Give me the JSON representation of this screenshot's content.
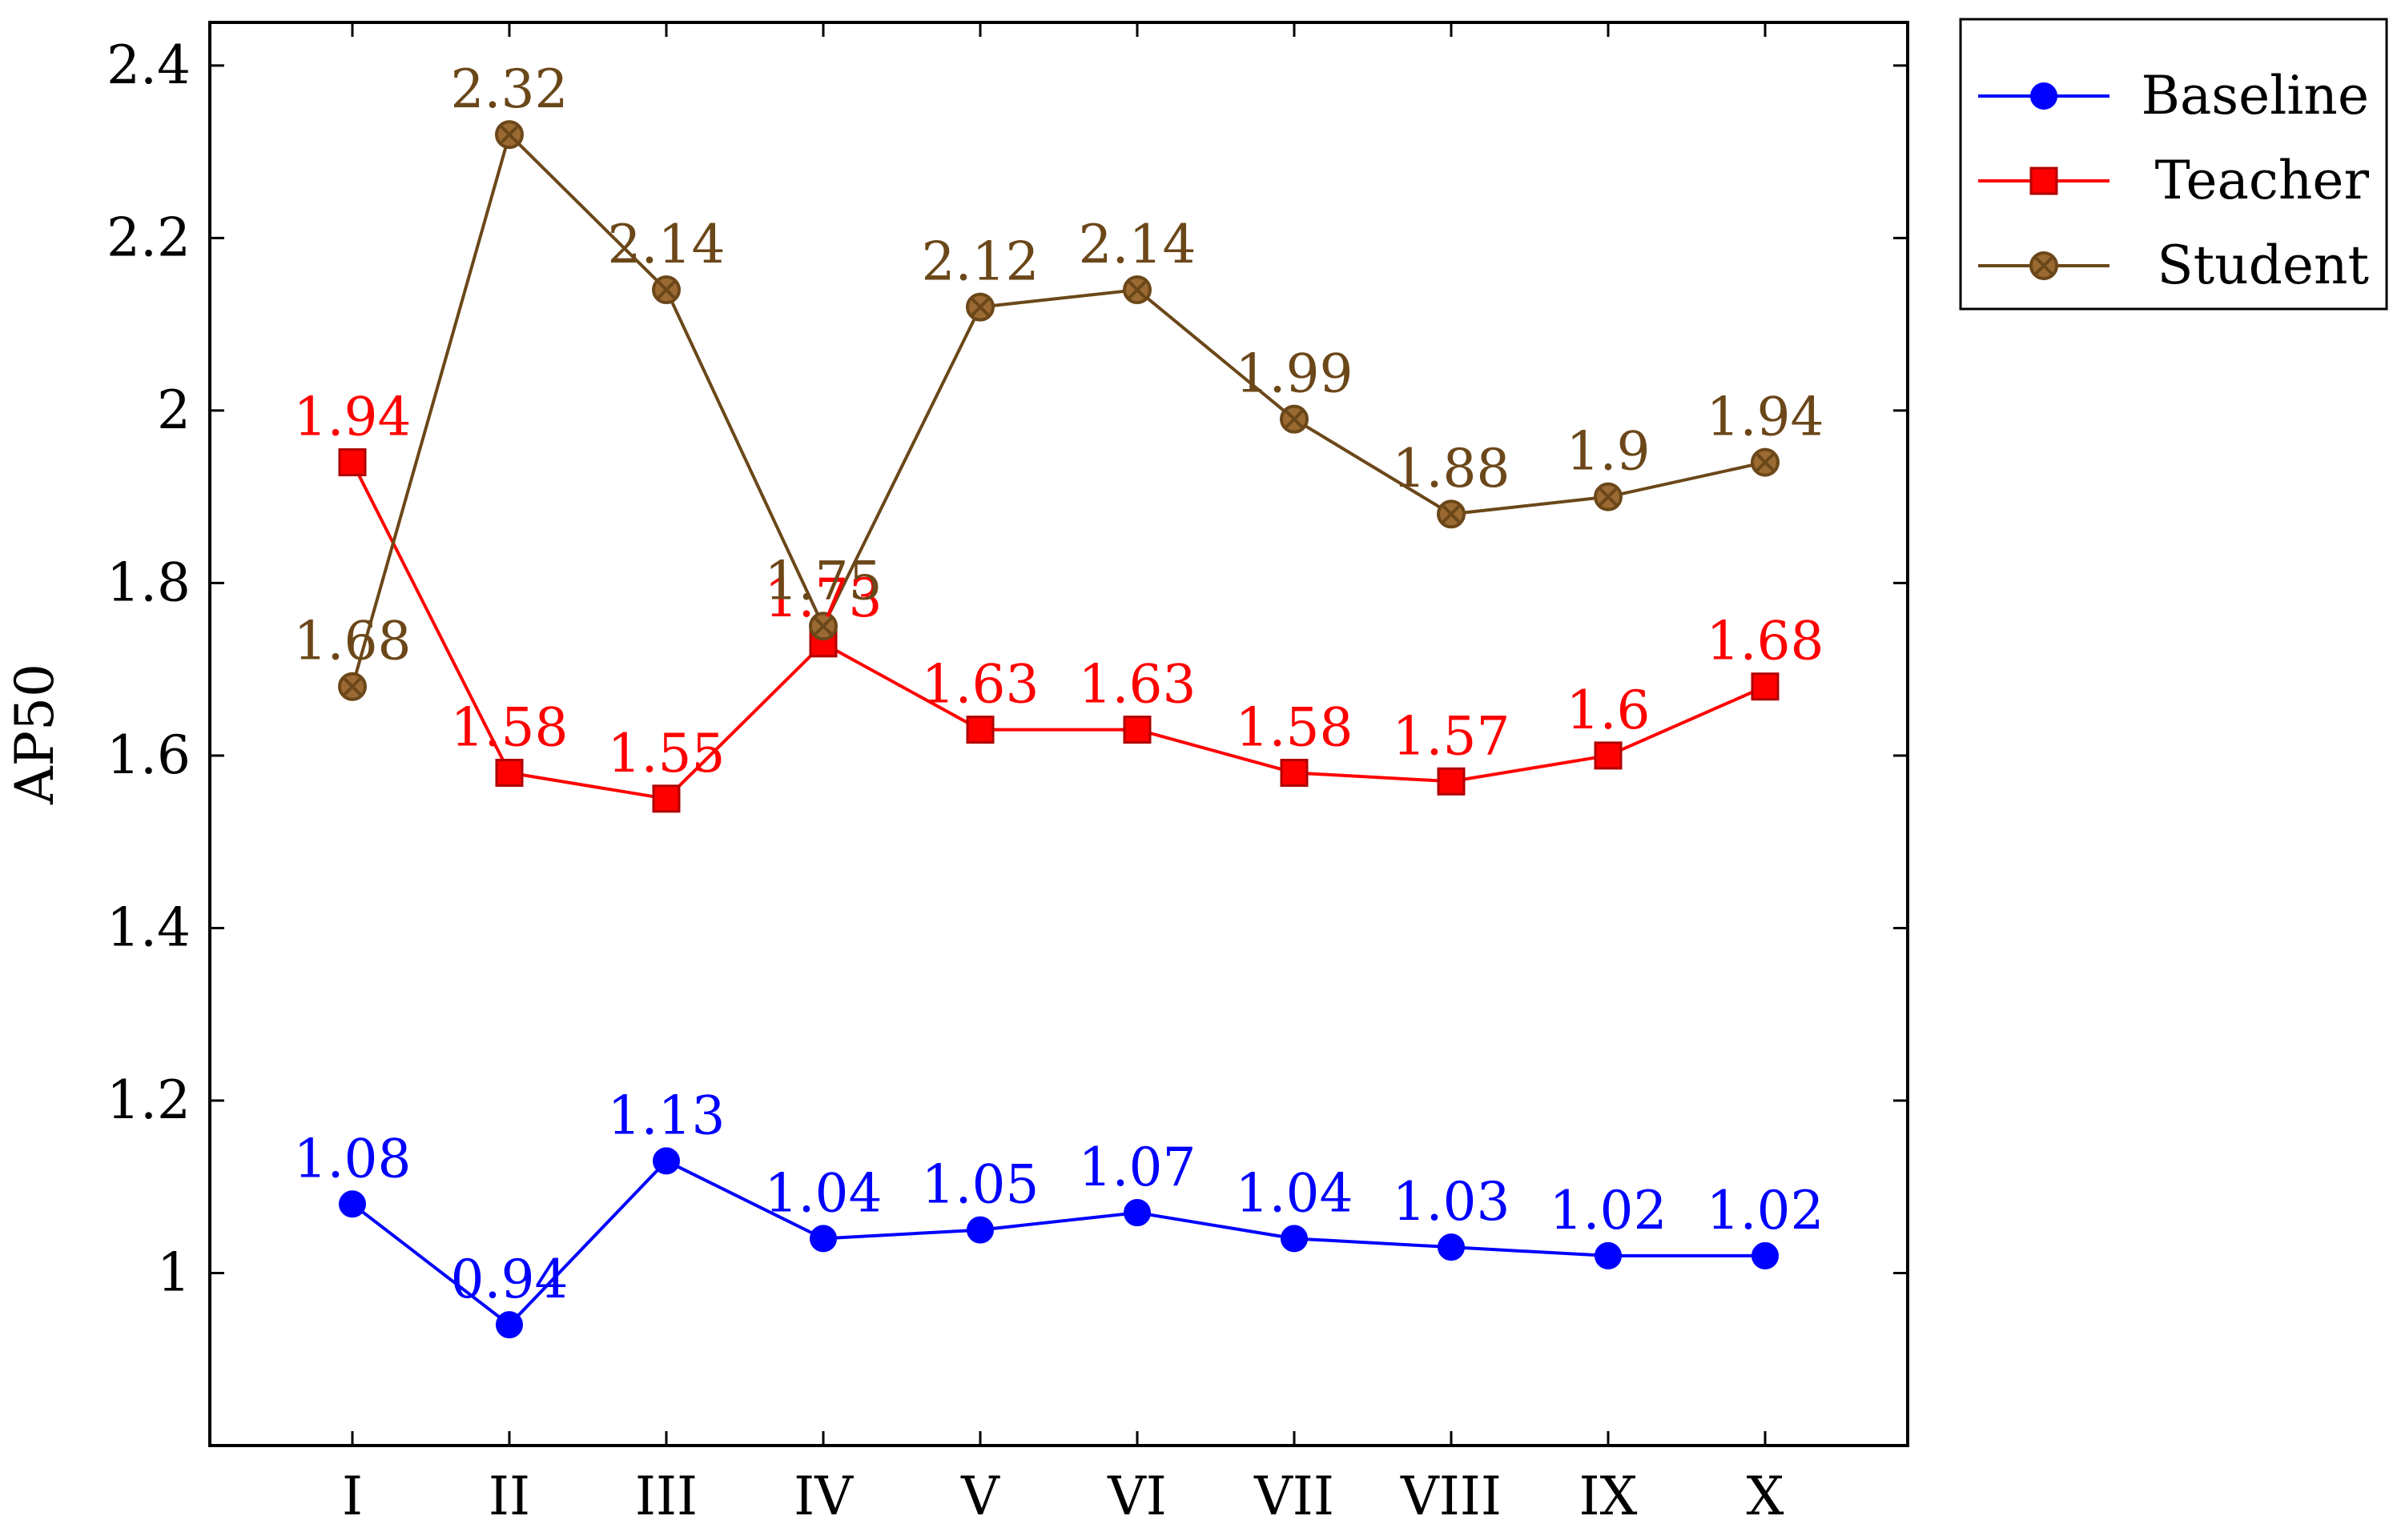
{
  "chart_data": {
    "type": "line",
    "title": "",
    "xlabel": "",
    "ylabel": "AP50",
    "categories": [
      "I",
      "II",
      "III",
      "IV",
      "V",
      "VI",
      "VII",
      "VIII",
      "IX",
      "X"
    ],
    "ylim": [
      0.8,
      2.45
    ],
    "yticks": [
      1,
      1.2,
      1.4,
      1.6,
      1.8,
      2,
      2.2,
      2.4
    ],
    "ytick_labels": [
      "1",
      "1.2",
      "1.4",
      "1.6",
      "1.8",
      "2",
      "2.2",
      "2.4"
    ],
    "grid": false,
    "legend_position": "outside-top-right",
    "series": [
      {
        "name": "Baseline",
        "color": "#0000ff",
        "marker": "circle",
        "values": [
          1.08,
          0.94,
          1.13,
          1.04,
          1.05,
          1.07,
          1.04,
          1.03,
          1.02,
          1.02
        ],
        "labels": [
          "1.08",
          "0.94",
          "1.13",
          "1.04",
          "1.05",
          "1.07",
          "1.04",
          "1.03",
          "1.02",
          "1.02"
        ]
      },
      {
        "name": "Teacher",
        "color": "#ff0000",
        "marker": "square",
        "values": [
          1.94,
          1.58,
          1.55,
          1.73,
          1.63,
          1.63,
          1.58,
          1.57,
          1.6,
          1.68
        ],
        "labels": [
          "1.94",
          "1.58",
          "1.55",
          "1.73",
          "1.63",
          "1.63",
          "1.58",
          "1.57",
          "1.6",
          "1.68"
        ]
      },
      {
        "name": "Student",
        "color": "#6b4719",
        "fill": "#9b6a33",
        "marker": "otimes",
        "values": [
          1.68,
          2.32,
          2.14,
          1.75,
          2.12,
          2.14,
          1.99,
          1.88,
          1.9,
          1.94
        ],
        "labels": [
          "1.68",
          "2.32",
          "2.14",
          "1.75",
          "2.12",
          "2.14",
          "1.99",
          "1.88",
          "1.9",
          "1.94"
        ]
      }
    ]
  }
}
